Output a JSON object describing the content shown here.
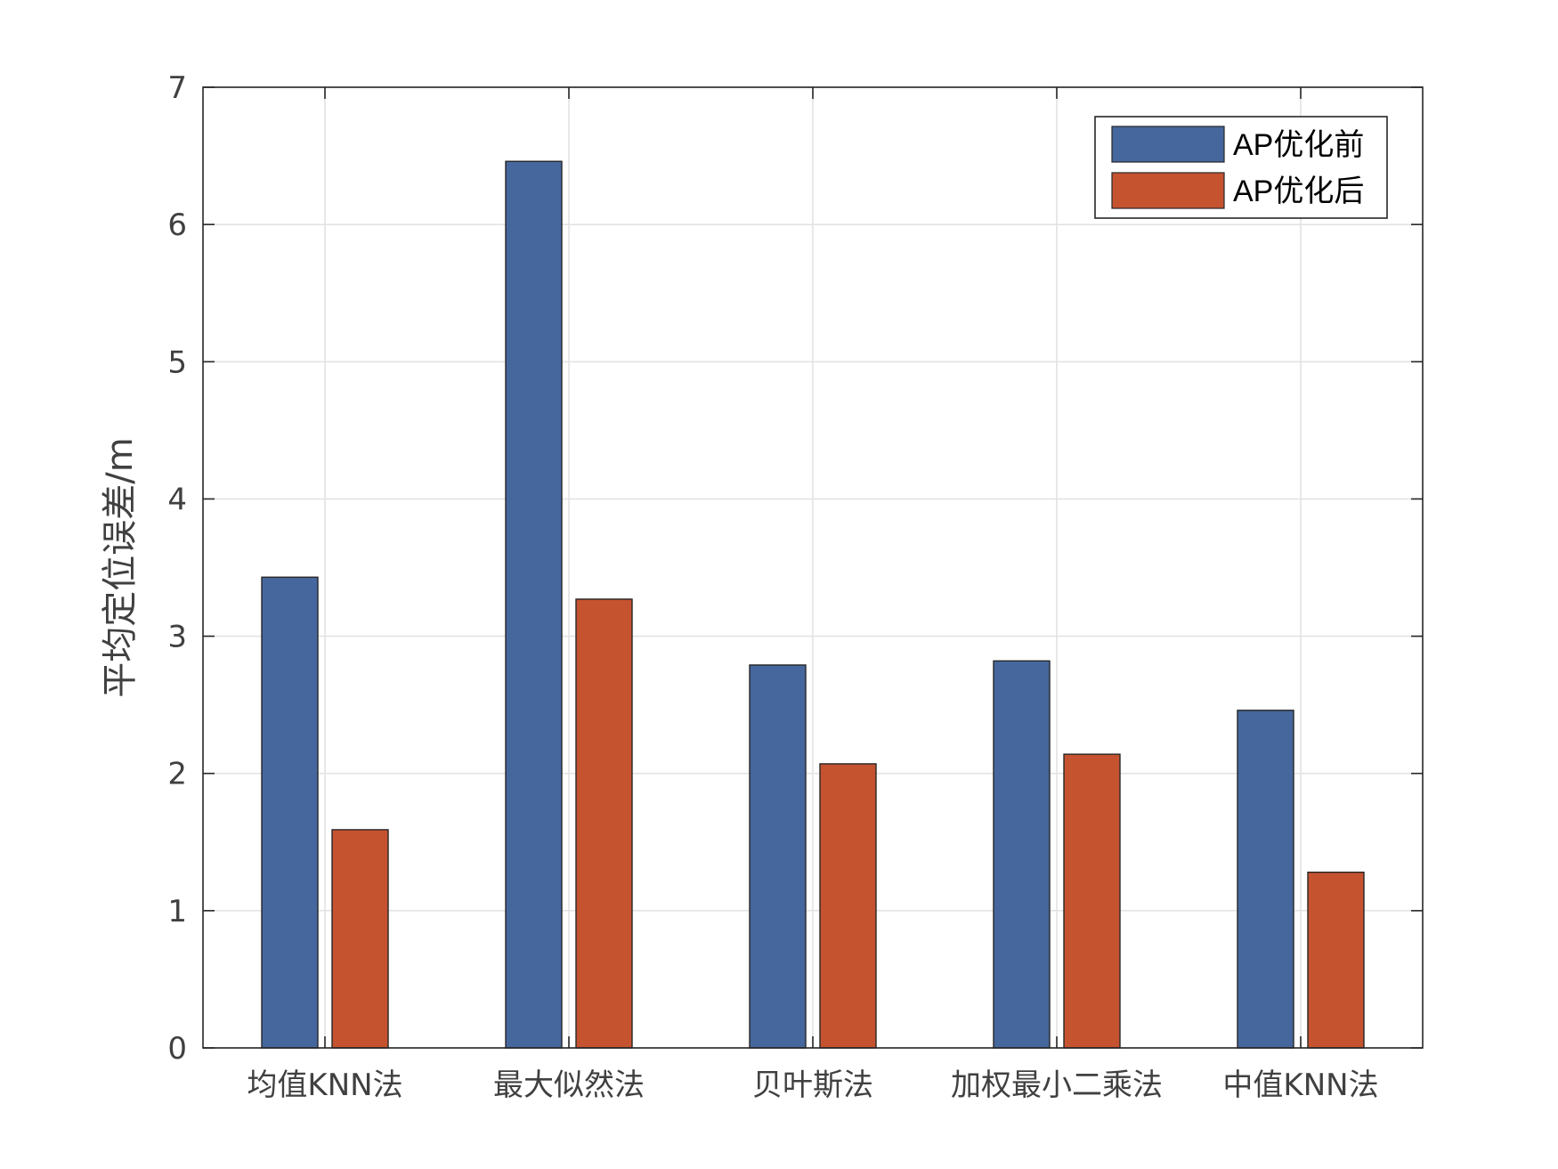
{
  "chart_data": {
    "type": "bar",
    "categories": [
      "均值KNN法",
      "最大似然法",
      "贝叶斯法",
      "加权最小二乘法",
      "中值KNN法"
    ],
    "series": [
      {
        "name": "AP优化前",
        "values": [
          3.43,
          6.46,
          2.79,
          2.82,
          2.46
        ],
        "color": "#46679d"
      },
      {
        "name": "AP优化后",
        "values": [
          1.59,
          3.27,
          2.07,
          2.14,
          1.28
        ],
        "color": "#c65330"
      }
    ],
    "title": "",
    "xlabel": "",
    "ylabel": "平均定位误差/m",
    "ylim": [
      0,
      7
    ],
    "yticks": [
      "0",
      "1",
      "2",
      "3",
      "4",
      "5",
      "6",
      "7"
    ],
    "grid": true,
    "legend_position": "top-right"
  }
}
